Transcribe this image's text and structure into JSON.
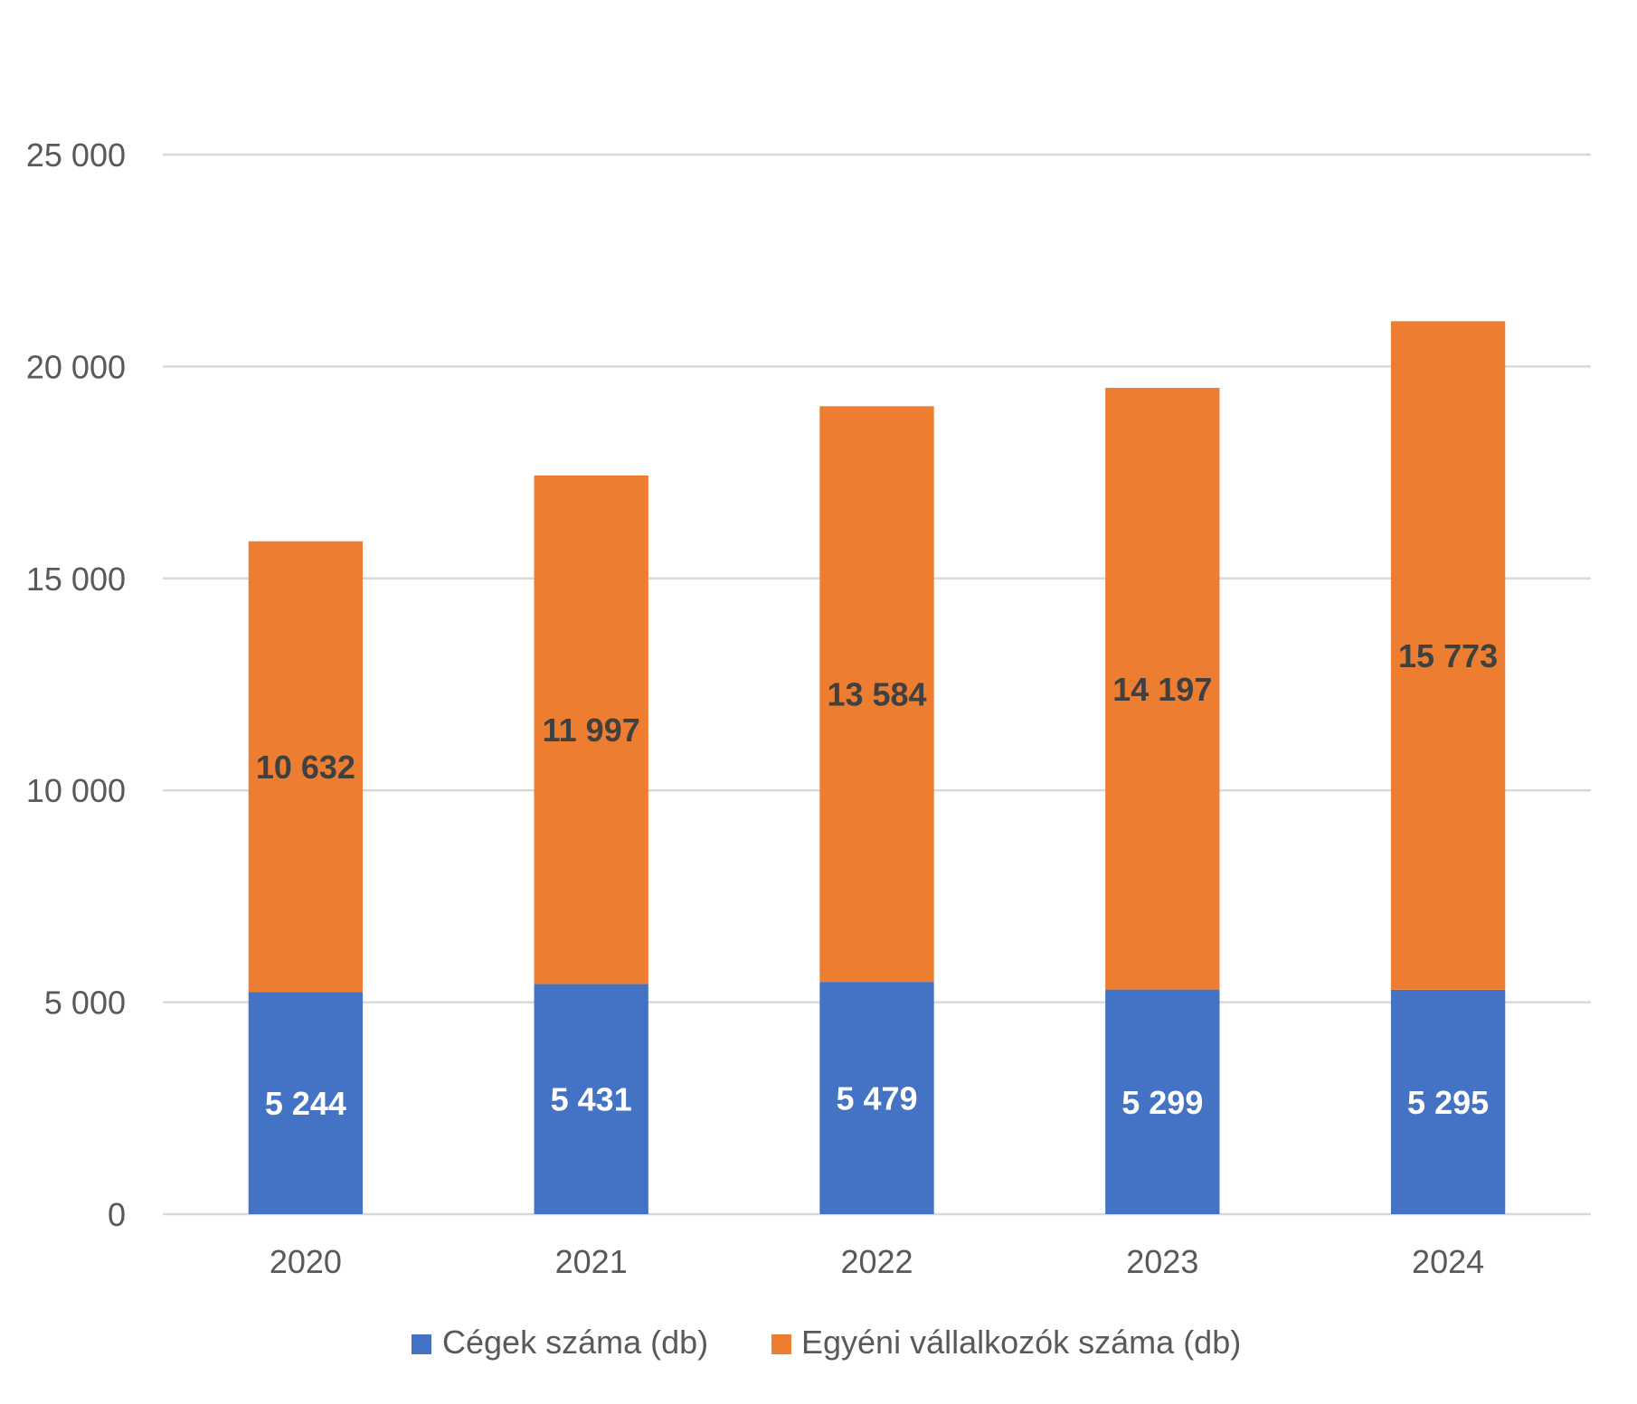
{
  "chart_data": {
    "type": "bar",
    "stacked": true,
    "title": "",
    "xlabel": "",
    "ylabel": "",
    "categories": [
      "2020",
      "2021",
      "2022",
      "2023",
      "2024"
    ],
    "series": [
      {
        "name": "Cégek száma (db)",
        "color": "#4472C4",
        "label_color": "#FFFFFF",
        "values": [
          5244,
          5431,
          5479,
          5299,
          5295
        ],
        "labels": [
          "5 244",
          "5 431",
          "5 479",
          "5 299",
          "5 295"
        ]
      },
      {
        "name": "Egyéni vállalkozók száma (db)",
        "color": "#ED7D31",
        "label_color": "#404040",
        "values": [
          10632,
          11997,
          13584,
          14197,
          15773
        ],
        "labels": [
          "10 632",
          "11 997",
          "13 584",
          "14 197",
          "15 773"
        ]
      }
    ],
    "ylim": [
      0,
      25000
    ],
    "yticks": [
      0,
      5000,
      10000,
      15000,
      20000,
      25000
    ],
    "ytick_labels": [
      "0",
      "5 000",
      "10 000",
      "15 000",
      "20 000",
      "25 000"
    ],
    "grid": true,
    "grid_color": "#D9D9D9",
    "legend_position": "bottom"
  }
}
